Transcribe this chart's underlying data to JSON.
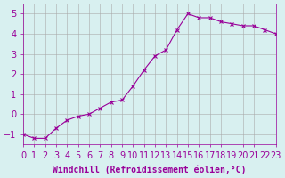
{
  "x": [
    0,
    1,
    2,
    3,
    4,
    5,
    6,
    7,
    8,
    9,
    10,
    11,
    12,
    13,
    14,
    15,
    16,
    17,
    18,
    19,
    20,
    21,
    22,
    23
  ],
  "y": [
    -1.0,
    -1.2,
    -1.2,
    -0.7,
    -0.3,
    -0.1,
    0.0,
    0.3,
    0.6,
    0.7,
    1.4,
    2.2,
    2.9,
    3.2,
    4.2,
    5.0,
    4.8,
    4.8,
    4.6,
    4.5,
    4.4,
    4.4,
    4.2,
    4.0
  ],
  "xlabel": "Windchill (Refroidissement éolien,°C)",
  "ylabel": "",
  "xlim": [
    0,
    23
  ],
  "ylim": [
    -1.5,
    5.5
  ],
  "yticks": [
    -1,
    0,
    1,
    2,
    3,
    4,
    5
  ],
  "xticks": [
    0,
    1,
    2,
    3,
    4,
    5,
    6,
    7,
    8,
    9,
    10,
    11,
    12,
    13,
    14,
    15,
    16,
    17,
    18,
    19,
    20,
    21,
    22,
    23
  ],
  "line_color": "#990099",
  "marker": "x",
  "bg_color": "#d8f0f0",
  "grid_color": "#aaaaaa",
  "font_color": "#990099",
  "font_size": 7
}
